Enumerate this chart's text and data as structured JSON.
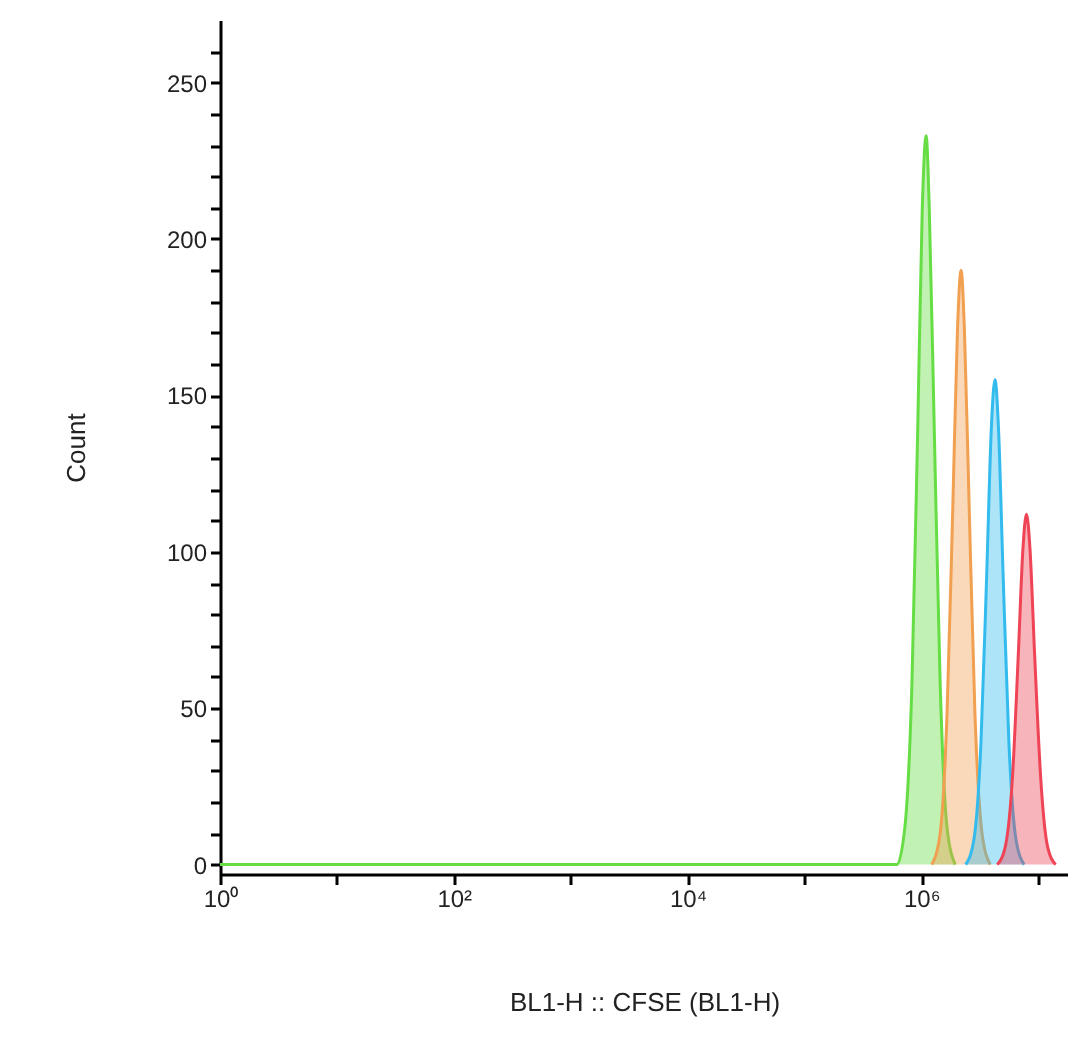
{
  "chart_data": {
    "type": "area",
    "xlabel": "BL1-H :: CFSE (BL1-H)",
    "ylabel": "Count",
    "log": "x",
    "grid": false,
    "xlim": [
      1,
      18000000
    ],
    "ylim": [
      -3,
      270
    ],
    "xticks": [
      {
        "value": 1,
        "label": "10⁰"
      },
      {
        "value": 10,
        "label": null
      },
      {
        "value": 100,
        "label": "10²"
      },
      {
        "value": 1000,
        "label": null
      },
      {
        "value": 10000,
        "label": "10⁴"
      },
      {
        "value": 100000,
        "label": null
      },
      {
        "value": 1000000,
        "label": "10⁶"
      },
      {
        "value": 10000000,
        "label": null
      }
    ],
    "yticks": [
      0,
      {
        "value": 10,
        "label": null
      },
      {
        "value": 20,
        "label": null
      },
      {
        "value": 30,
        "label": null
      },
      {
        "value": 40,
        "label": null
      },
      50,
      {
        "value": 60,
        "label": null
      },
      {
        "value": 70,
        "label": null
      },
      {
        "value": 80,
        "label": null
      },
      {
        "value": 90,
        "label": null
      },
      100,
      {
        "value": 110,
        "label": null
      },
      {
        "value": 120,
        "label": null
      },
      {
        "value": 130,
        "label": null
      },
      {
        "value": 140,
        "label": null
      },
      150,
      {
        "value": 160,
        "label": null
      },
      {
        "value": 170,
        "label": null
      },
      {
        "value": 180,
        "label": null
      },
      {
        "value": 190,
        "label": null
      },
      200,
      {
        "value": 210,
        "label": null
      },
      {
        "value": 220,
        "label": null
      },
      {
        "value": 230,
        "label": null
      },
      {
        "value": 240,
        "label": null
      },
      250,
      {
        "value": 260,
        "label": null
      }
    ],
    "series": [
      {
        "color": "#66dd44",
        "x": [
          1,
          617000,
          724000,
          832000,
          933000,
          1020000,
          1100000,
          1170000,
          1290000,
          1450000,
          1660000,
          1950000
        ],
        "values": [
          0,
          0,
          12,
          58,
          140,
          210,
          233,
          210,
          140,
          58,
          12,
          0
        ]
      },
      {
        "color": "#f0a050",
        "x": [
          1230000,
          1450000,
          1660000,
          1860000,
          2040000,
          2190000,
          2340000,
          2570000,
          2880000,
          3310000,
          3890000
        ],
        "values": [
          0,
          10,
          48,
          114,
          171,
          190,
          171,
          114,
          48,
          10,
          0
        ]
      },
      {
        "color": "#33bbee",
        "x": [
          2400000,
          2820000,
          3240000,
          3630000,
          3980000,
          4270000,
          4570000,
          5010000,
          5620000,
          6460000,
          7590000
        ],
        "values": [
          0,
          8,
          39,
          93,
          140,
          155,
          140,
          93,
          39,
          8,
          0
        ]
      },
      {
        "color": "#ee4455",
        "x": [
          4470000,
          5250000,
          6030000,
          6760000,
          7410000,
          7940000,
          8510000,
          9330000,
          10500000,
          12000000,
          14100000
        ],
        "values": [
          0,
          6,
          28,
          67,
          101,
          112,
          101,
          67,
          28,
          6,
          0
        ]
      }
    ]
  }
}
